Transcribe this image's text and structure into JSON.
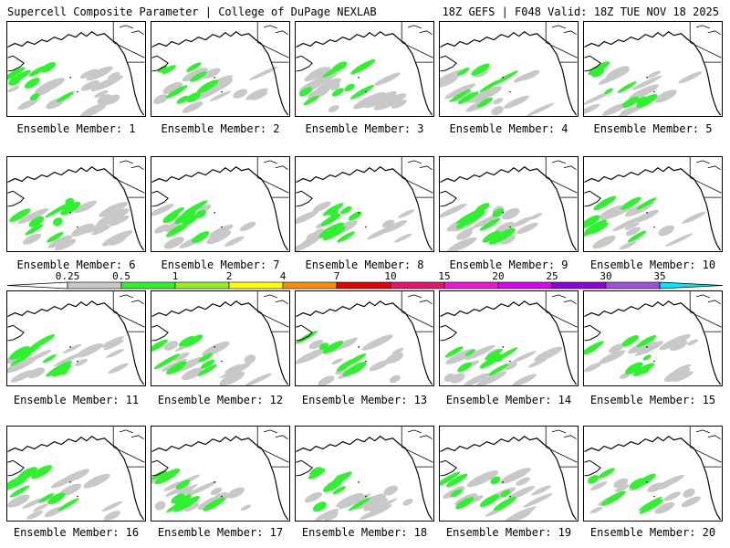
{
  "header": {
    "left_title": "Supercell Composite Parameter | College of DuPage NEXLAB",
    "right_title": "18Z GEFS | F048 Valid: 18Z TUE NOV 18 2025"
  },
  "member_label_prefix": "Ensemble Member:",
  "members": [
    "1",
    "2",
    "3",
    "4",
    "5",
    "6",
    "7",
    "8",
    "9",
    "10",
    "11",
    "12",
    "13",
    "14",
    "15",
    "16",
    "17",
    "18",
    "19",
    "20"
  ],
  "colorbar": {
    "ticks": [
      "0.25",
      "0.5",
      "1",
      "2",
      "4",
      "7",
      "10",
      "15",
      "20",
      "25",
      "30",
      "35"
    ],
    "colors": [
      "#ffffff",
      "#c8c8c8",
      "#2ef22e",
      "#96f01e",
      "#ffff00",
      "#ff8c00",
      "#e60000",
      "#e6146e",
      "#f014dc",
      "#dc00f5",
      "#8c00dc",
      "#a050dc",
      "#00e6ff"
    ]
  },
  "map_colors": {
    "land_outline": "#000000",
    "low": "#c8c8c8",
    "green": "#2ef22e"
  }
}
